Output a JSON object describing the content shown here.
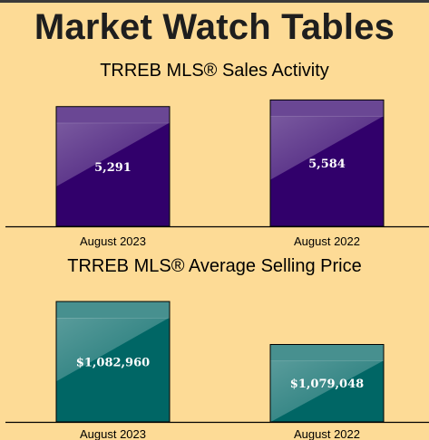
{
  "page_title": "Market Watch Tables",
  "colors": {
    "background": "#FDDB96",
    "purple_bar": "#31006B",
    "teal_bar": "#006665"
  },
  "chart_data": [
    {
      "type": "bar",
      "title": "TRREB MLS® Sales Activity",
      "categories": [
        "August 2023",
        "August 2022"
      ],
      "values": [
        5291,
        5584
      ],
      "value_labels": [
        "5,291",
        "5,584"
      ],
      "ylim": [
        0,
        6000
      ]
    },
    {
      "type": "bar",
      "title": "TRREB MLS® Average Selling Price",
      "categories": [
        "August 2023",
        "August 2022"
      ],
      "values": [
        1082960,
        1079048
      ],
      "value_labels": [
        "$1,082,960",
        "$1,079,048"
      ],
      "ylim": [
        1072000,
        1084200
      ]
    }
  ]
}
